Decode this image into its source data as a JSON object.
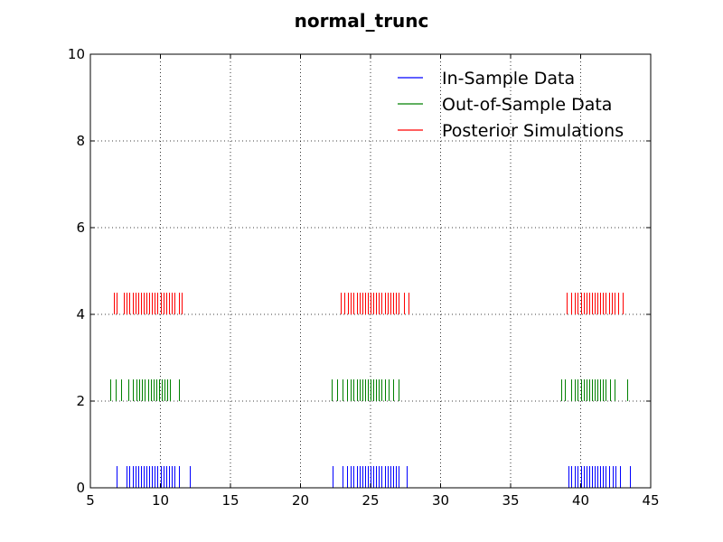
{
  "chart_data": {
    "type": "rug",
    "title": "normal_trunc",
    "xlabel": "",
    "ylabel": "",
    "xlim": [
      5,
      45
    ],
    "ylim": [
      0,
      10
    ],
    "xticks": [
      5,
      10,
      15,
      20,
      25,
      30,
      35,
      40,
      45
    ],
    "yticks": [
      0,
      2,
      4,
      6,
      8,
      10
    ],
    "xtick_labels": [
      "5",
      "10",
      "15",
      "20",
      "25",
      "30",
      "35",
      "40",
      "45"
    ],
    "ytick_labels": [
      "0",
      "2",
      "4",
      "6",
      "8",
      "10"
    ],
    "grid": true,
    "legend_position": "top-right",
    "series": [
      {
        "name": "In-Sample Data",
        "color": "#0000ff",
        "y_range": [
          0,
          0.5
        ],
        "values": [
          6.9,
          7.6,
          7.8,
          8.0,
          8.2,
          8.4,
          8.6,
          8.8,
          9.0,
          9.2,
          9.4,
          9.6,
          9.8,
          10.0,
          10.2,
          10.4,
          10.6,
          10.8,
          11.0,
          11.3,
          12.1,
          22.3,
          23.0,
          23.3,
          23.6,
          23.8,
          24.0,
          24.2,
          24.4,
          24.6,
          24.8,
          25.0,
          25.2,
          25.4,
          25.6,
          25.8,
          26.0,
          26.2,
          26.4,
          26.6,
          26.8,
          27.0,
          27.6,
          39.1,
          39.3,
          39.6,
          39.8,
          40.0,
          40.2,
          40.4,
          40.6,
          40.8,
          41.0,
          41.2,
          41.4,
          41.6,
          41.8,
          42.0,
          42.3,
          42.5,
          42.8,
          43.5
        ]
      },
      {
        "name": "Out-of-Sample Data",
        "color": "#008000",
        "y_range": [
          2,
          2.5
        ],
        "values": [
          6.4,
          6.8,
          7.2,
          7.7,
          8.0,
          8.3,
          8.5,
          8.7,
          8.9,
          9.1,
          9.3,
          9.5,
          9.7,
          9.9,
          10.1,
          10.3,
          10.5,
          10.7,
          11.3,
          22.2,
          22.6,
          23.0,
          23.3,
          23.6,
          23.8,
          24.0,
          24.2,
          24.4,
          24.6,
          24.8,
          25.0,
          25.2,
          25.4,
          25.6,
          25.8,
          26.0,
          26.3,
          26.6,
          27.0,
          38.6,
          38.9,
          39.3,
          39.6,
          39.8,
          40.0,
          40.2,
          40.4,
          40.6,
          40.8,
          41.0,
          41.2,
          41.4,
          41.6,
          41.8,
          42.1,
          42.4,
          43.3
        ]
      },
      {
        "name": "Posterior Simulations",
        "color": "#ff0000",
        "y_range": [
          4,
          4.5
        ],
        "values": [
          6.7,
          6.9,
          7.4,
          7.6,
          7.8,
          8.0,
          8.2,
          8.4,
          8.6,
          8.8,
          9.0,
          9.2,
          9.4,
          9.6,
          9.8,
          10.0,
          10.2,
          10.4,
          10.6,
          10.8,
          11.0,
          11.3,
          11.5,
          22.9,
          23.1,
          23.4,
          23.6,
          23.8,
          24.0,
          24.2,
          24.4,
          24.6,
          24.8,
          25.0,
          25.2,
          25.4,
          25.6,
          25.8,
          26.0,
          26.2,
          26.4,
          26.6,
          26.8,
          27.0,
          27.4,
          27.7,
          39.0,
          39.3,
          39.6,
          39.8,
          40.0,
          40.2,
          40.4,
          40.6,
          40.8,
          41.0,
          41.2,
          41.4,
          41.6,
          41.8,
          42.0,
          42.2,
          42.4,
          42.7,
          43.0
        ]
      }
    ]
  }
}
